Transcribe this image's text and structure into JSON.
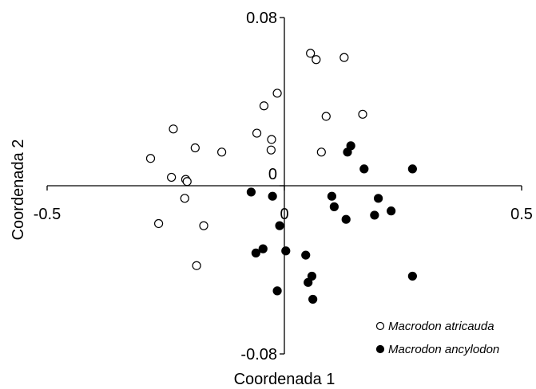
{
  "chart_data": {
    "type": "scatter",
    "xlabel": "Coordenada 1",
    "ylabel": "Coordenada 2",
    "xlim": [
      -0.5,
      0.5
    ],
    "ylim": [
      -0.08,
      0.08
    ],
    "x_ticks": [
      {
        "value": -0.5,
        "label": "-0.5"
      },
      {
        "value": 0,
        "label": "0"
      },
      {
        "value": 0.5,
        "label": "0.5"
      }
    ],
    "y_ticks": [
      {
        "value": 0.08,
        "label": "0.08"
      },
      {
        "value": 0,
        "label": "0"
      },
      {
        "value": -0.08,
        "label": "-0.08"
      }
    ],
    "legend_position": "bottom-right",
    "series": [
      {
        "name": "Macrodon atricauda",
        "marker": "open-circle",
        "color": "#000000",
        "points": [
          [
            0.055,
            0.063
          ],
          [
            0.067,
            0.06
          ],
          [
            0.126,
            0.061
          ],
          [
            -0.015,
            0.044
          ],
          [
            -0.043,
            0.038
          ],
          [
            0.165,
            0.034
          ],
          [
            0.088,
            0.033
          ],
          [
            -0.234,
            0.027
          ],
          [
            -0.058,
            0.025
          ],
          [
            -0.027,
            0.022
          ],
          [
            -0.188,
            0.018
          ],
          [
            -0.028,
            0.017
          ],
          [
            -0.132,
            0.016
          ],
          [
            0.078,
            0.016
          ],
          [
            -0.282,
            0.013
          ],
          [
            -0.238,
            0.004
          ],
          [
            -0.208,
            0.003
          ],
          [
            -0.205,
            0.002
          ],
          [
            -0.21,
            -0.006
          ],
          [
            -0.265,
            -0.018
          ],
          [
            -0.17,
            -0.019
          ],
          [
            -0.185,
            -0.038
          ]
        ]
      },
      {
        "name": "Macrodon ancylodon",
        "marker": "filled-circle",
        "color": "#000000",
        "points": [
          [
            0.14,
            0.019
          ],
          [
            0.133,
            0.016
          ],
          [
            0.168,
            0.008
          ],
          [
            0.27,
            0.008
          ],
          [
            -0.07,
            -0.003
          ],
          [
            -0.025,
            -0.005
          ],
          [
            0.1,
            -0.005
          ],
          [
            0.198,
            -0.006
          ],
          [
            0.105,
            -0.01
          ],
          [
            0.225,
            -0.012
          ],
          [
            0.19,
            -0.014
          ],
          [
            0.13,
            -0.016
          ],
          [
            -0.01,
            -0.019
          ],
          [
            -0.045,
            -0.03
          ],
          [
            -0.06,
            -0.032
          ],
          [
            0.003,
            -0.031
          ],
          [
            0.045,
            -0.033
          ],
          [
            0.058,
            -0.043
          ],
          [
            0.05,
            -0.046
          ],
          [
            0.27,
            -0.043
          ],
          [
            -0.015,
            -0.05
          ],
          [
            0.06,
            -0.054
          ]
        ]
      }
    ]
  }
}
